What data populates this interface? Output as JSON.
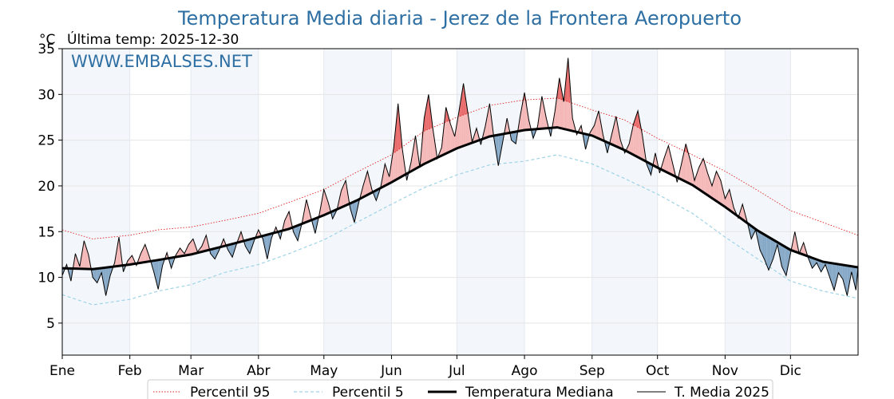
{
  "chart_data": {
    "type": "line",
    "title": "Temperatura Media diaria - Jerez de la Frontera Aeropuerto",
    "ylabel": "°C",
    "last_temp_label": "Última temp: 2025-12-30",
    "watermark": "WWW.EMBALSES.NET",
    "ylim": [
      1.5,
      35
    ],
    "y_ticks": [
      5,
      10,
      15,
      20,
      25,
      30,
      35
    ],
    "x_day_range": [
      1,
      366
    ],
    "months": [
      {
        "label": "Ene",
        "day": 1
      },
      {
        "label": "Feb",
        "day": 32
      },
      {
        "label": "Mar",
        "day": 60
      },
      {
        "label": "Abr",
        "day": 91
      },
      {
        "label": "May",
        "day": 121
      },
      {
        "label": "Jun",
        "day": 152
      },
      {
        "label": "Jul",
        "day": 182
      },
      {
        "label": "Ago",
        "day": 213
      },
      {
        "label": "Sep",
        "day": 244
      },
      {
        "label": "Oct",
        "day": 274
      },
      {
        "label": "Nov",
        "day": 305
      },
      {
        "label": "Dic",
        "day": 335
      }
    ],
    "grid": true,
    "legend_position": "bottom",
    "series": [
      {
        "name": "Percentil 95",
        "style": "dotted",
        "color": "#e02020",
        "points": [
          [
            1,
            15.2
          ],
          [
            15,
            14.2
          ],
          [
            32,
            14.6
          ],
          [
            45,
            15.2
          ],
          [
            60,
            15.5
          ],
          [
            75,
            16.2
          ],
          [
            91,
            17.0
          ],
          [
            105,
            18.2
          ],
          [
            121,
            19.6
          ],
          [
            136,
            21.5
          ],
          [
            152,
            23.4
          ],
          [
            167,
            26.0
          ],
          [
            182,
            27.5
          ],
          [
            197,
            28.8
          ],
          [
            213,
            29.4
          ],
          [
            228,
            29.6
          ],
          [
            244,
            28.3
          ],
          [
            259,
            27.2
          ],
          [
            274,
            25.2
          ],
          [
            290,
            23.4
          ],
          [
            305,
            21.6
          ],
          [
            320,
            19.5
          ],
          [
            335,
            17.3
          ],
          [
            350,
            16.0
          ],
          [
            366,
            14.6
          ]
        ]
      },
      {
        "name": "Percentil 5",
        "style": "dashed",
        "color": "#9fd3e6",
        "points": [
          [
            1,
            8.1
          ],
          [
            15,
            7.0
          ],
          [
            32,
            7.6
          ],
          [
            45,
            8.5
          ],
          [
            60,
            9.2
          ],
          [
            75,
            10.5
          ],
          [
            91,
            11.4
          ],
          [
            105,
            12.6
          ],
          [
            121,
            14.1
          ],
          [
            136,
            16.0
          ],
          [
            152,
            18.0
          ],
          [
            167,
            19.8
          ],
          [
            182,
            21.2
          ],
          [
            197,
            22.3
          ],
          [
            213,
            22.7
          ],
          [
            228,
            23.4
          ],
          [
            244,
            22.4
          ],
          [
            259,
            20.8
          ],
          [
            274,
            19.1
          ],
          [
            290,
            17.0
          ],
          [
            305,
            14.4
          ],
          [
            320,
            12.0
          ],
          [
            335,
            9.6
          ],
          [
            350,
            8.5
          ],
          [
            366,
            7.7
          ]
        ]
      },
      {
        "name": "Temperatura Mediana",
        "style": "solid-thick",
        "color": "#000000",
        "points": [
          [
            1,
            11.0
          ],
          [
            15,
            10.9
          ],
          [
            32,
            11.4
          ],
          [
            45,
            11.9
          ],
          [
            60,
            12.5
          ],
          [
            75,
            13.4
          ],
          [
            91,
            14.4
          ],
          [
            105,
            15.3
          ],
          [
            121,
            16.8
          ],
          [
            136,
            18.4
          ],
          [
            152,
            20.4
          ],
          [
            167,
            22.4
          ],
          [
            182,
            24.1
          ],
          [
            197,
            25.4
          ],
          [
            213,
            26.1
          ],
          [
            228,
            26.4
          ],
          [
            244,
            25.5
          ],
          [
            259,
            23.9
          ],
          [
            274,
            22.0
          ],
          [
            290,
            20.1
          ],
          [
            305,
            17.7
          ],
          [
            320,
            15.1
          ],
          [
            335,
            13.0
          ],
          [
            350,
            11.7
          ],
          [
            366,
            11.1
          ]
        ]
      },
      {
        "name": "T. Media 2025",
        "style": "solid-thin",
        "color": "#000000",
        "points": [
          [
            1,
            10.2
          ],
          [
            3,
            11.4
          ],
          [
            5,
            9.6
          ],
          [
            7,
            12.6
          ],
          [
            9,
            11.2
          ],
          [
            11,
            14.0
          ],
          [
            13,
            12.5
          ],
          [
            15,
            10.0
          ],
          [
            17,
            9.4
          ],
          [
            19,
            10.5
          ],
          [
            21,
            8.0
          ],
          [
            23,
            10.2
          ],
          [
            25,
            11.6
          ],
          [
            27,
            14.4
          ],
          [
            29,
            10.6
          ],
          [
            31,
            11.8
          ],
          [
            33,
            12.4
          ],
          [
            35,
            11.3
          ],
          [
            37,
            12.6
          ],
          [
            39,
            13.6
          ],
          [
            41,
            12.2
          ],
          [
            43,
            10.6
          ],
          [
            45,
            8.7
          ],
          [
            47,
            11.3
          ],
          [
            49,
            12.7
          ],
          [
            51,
            11.0
          ],
          [
            53,
            12.4
          ],
          [
            55,
            13.2
          ],
          [
            57,
            12.6
          ],
          [
            59,
            13.6
          ],
          [
            61,
            14.2
          ],
          [
            63,
            12.8
          ],
          [
            65,
            13.4
          ],
          [
            67,
            14.6
          ],
          [
            69,
            12.6
          ],
          [
            71,
            12.0
          ],
          [
            73,
            13.0
          ],
          [
            75,
            14.2
          ],
          [
            77,
            13.0
          ],
          [
            79,
            12.2
          ],
          [
            81,
            13.7
          ],
          [
            83,
            15.0
          ],
          [
            85,
            13.4
          ],
          [
            87,
            12.6
          ],
          [
            89,
            14.0
          ],
          [
            91,
            15.2
          ],
          [
            93,
            14.2
          ],
          [
            95,
            12.0
          ],
          [
            97,
            14.3
          ],
          [
            99,
            15.5
          ],
          [
            101,
            14.2
          ],
          [
            103,
            16.2
          ],
          [
            105,
            17.2
          ],
          [
            107,
            15.0
          ],
          [
            109,
            14.0
          ],
          [
            111,
            16.0
          ],
          [
            113,
            18.5
          ],
          [
            115,
            16.6
          ],
          [
            117,
            14.8
          ],
          [
            119,
            17.0
          ],
          [
            121,
            19.6
          ],
          [
            123,
            18.2
          ],
          [
            125,
            16.4
          ],
          [
            127,
            17.4
          ],
          [
            129,
            19.5
          ],
          [
            131,
            20.6
          ],
          [
            133,
            17.6
          ],
          [
            135,
            16.0
          ],
          [
            137,
            18.2
          ],
          [
            139,
            20.0
          ],
          [
            141,
            21.6
          ],
          [
            143,
            19.6
          ],
          [
            145,
            18.4
          ],
          [
            147,
            19.8
          ],
          [
            149,
            22.4
          ],
          [
            151,
            21.0
          ],
          [
            153,
            24.2
          ],
          [
            155,
            29.0
          ],
          [
            157,
            24.0
          ],
          [
            159,
            20.6
          ],
          [
            161,
            22.6
          ],
          [
            163,
            25.5
          ],
          [
            165,
            22.0
          ],
          [
            167,
            27.4
          ],
          [
            169,
            30.0
          ],
          [
            171,
            26.2
          ],
          [
            173,
            23.0
          ],
          [
            175,
            24.2
          ],
          [
            177,
            28.6
          ],
          [
            179,
            26.8
          ],
          [
            181,
            25.4
          ],
          [
            183,
            28.2
          ],
          [
            185,
            31.2
          ],
          [
            187,
            28.0
          ],
          [
            189,
            24.8
          ],
          [
            191,
            26.3
          ],
          [
            193,
            24.5
          ],
          [
            195,
            26.5
          ],
          [
            197,
            29.0
          ],
          [
            199,
            25.2
          ],
          [
            201,
            22.2
          ],
          [
            203,
            24.8
          ],
          [
            205,
            27.4
          ],
          [
            207,
            25.0
          ],
          [
            209,
            24.6
          ],
          [
            211,
            27.6
          ],
          [
            213,
            30.2
          ],
          [
            215,
            27.2
          ],
          [
            217,
            25.2
          ],
          [
            219,
            26.5
          ],
          [
            221,
            29.8
          ],
          [
            223,
            27.4
          ],
          [
            225,
            25.4
          ],
          [
            227,
            28.2
          ],
          [
            229,
            31.8
          ],
          [
            231,
            29.2
          ],
          [
            233,
            34.0
          ],
          [
            235,
            27.4
          ],
          [
            237,
            25.6
          ],
          [
            239,
            26.6
          ],
          [
            241,
            24.0
          ],
          [
            243,
            25.8
          ],
          [
            245,
            26.6
          ],
          [
            247,
            28.2
          ],
          [
            249,
            25.6
          ],
          [
            251,
            23.6
          ],
          [
            253,
            25.6
          ],
          [
            255,
            27.6
          ],
          [
            257,
            25.0
          ],
          [
            259,
            23.6
          ],
          [
            261,
            24.6
          ],
          [
            263,
            26.8
          ],
          [
            265,
            28.2
          ],
          [
            267,
            25.6
          ],
          [
            269,
            22.4
          ],
          [
            271,
            21.2
          ],
          [
            273,
            23.6
          ],
          [
            275,
            21.4
          ],
          [
            277,
            23.0
          ],
          [
            279,
            24.4
          ],
          [
            281,
            22.4
          ],
          [
            283,
            20.4
          ],
          [
            285,
            22.4
          ],
          [
            287,
            24.6
          ],
          [
            289,
            22.8
          ],
          [
            291,
            20.6
          ],
          [
            293,
            22.0
          ],
          [
            295,
            23.0
          ],
          [
            297,
            21.4
          ],
          [
            299,
            20.0
          ],
          [
            301,
            21.6
          ],
          [
            303,
            20.6
          ],
          [
            305,
            18.6
          ],
          [
            307,
            19.6
          ],
          [
            309,
            17.6
          ],
          [
            311,
            16.5
          ],
          [
            313,
            18.0
          ],
          [
            315,
            16.2
          ],
          [
            317,
            14.2
          ],
          [
            319,
            15.2
          ],
          [
            321,
            13.0
          ],
          [
            323,
            12.0
          ],
          [
            325,
            10.8
          ],
          [
            327,
            12.0
          ],
          [
            329,
            13.6
          ],
          [
            331,
            11.2
          ],
          [
            333,
            10.2
          ],
          [
            335,
            12.6
          ],
          [
            337,
            15.0
          ],
          [
            339,
            12.6
          ],
          [
            341,
            13.8
          ],
          [
            343,
            12.2
          ],
          [
            345,
            11.0
          ],
          [
            347,
            11.6
          ],
          [
            349,
            10.6
          ],
          [
            351,
            11.4
          ],
          [
            353,
            10.0
          ],
          [
            355,
            8.6
          ],
          [
            357,
            10.5
          ],
          [
            359,
            9.8
          ],
          [
            361,
            8.0
          ],
          [
            363,
            10.6
          ],
          [
            365,
            8.6
          ],
          [
            366,
            11.2
          ]
        ]
      }
    ]
  }
}
